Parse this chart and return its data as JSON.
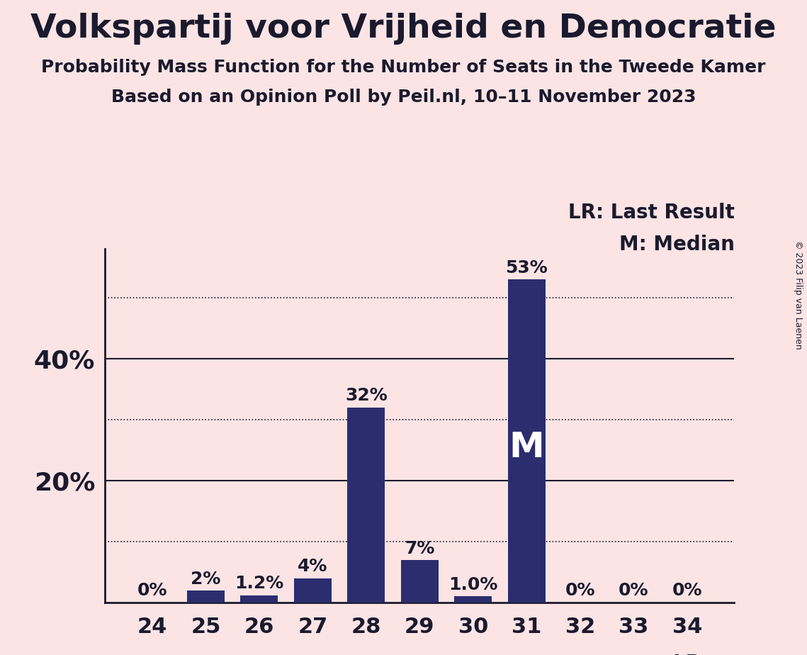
{
  "title": "Volkspartij voor Vrijheid en Democratie",
  "subtitle1": "Probability Mass Function for the Number of Seats in the Tweede Kamer",
  "subtitle2": "Based on an Opinion Poll by Peil.nl, 10–11 November 2023",
  "copyright": "© 2023 Filip van Laenen",
  "categories": [
    24,
    25,
    26,
    27,
    28,
    29,
    30,
    31,
    32,
    33,
    34
  ],
  "values": [
    0.0,
    2.0,
    1.2,
    4.0,
    32.0,
    7.0,
    1.0,
    53.0,
    0.0,
    0.0,
    0.0
  ],
  "labels": [
    "0%",
    "2%",
    "1.2%",
    "4%",
    "32%",
    "7%",
    "1.0%",
    "53%",
    "0%",
    "0%",
    "0%"
  ],
  "bar_color": "#2b2d6e",
  "background_color": "#fce4e4",
  "title_color": "#1a1a2e",
  "label_color": "#1a1a2e",
  "median_bar": 31,
  "last_result_bar": 34,
  "ylim": [
    0,
    58
  ],
  "solid_lines": [
    20,
    40
  ],
  "dotted_lines": [
    10,
    30,
    50
  ],
  "ytick_positions": [
    20,
    40
  ],
  "ytick_labels": [
    "20%",
    "40%"
  ],
  "legend_lr": "LR: Last Result",
  "legend_m": "M: Median",
  "legend_lr_short": "LR",
  "median_label": "M",
  "title_fontsize": 34,
  "subtitle_fontsize": 18,
  "bar_label_fontsize": 18,
  "ytick_fontsize": 26,
  "xtick_fontsize": 22,
  "legend_fontsize": 20
}
